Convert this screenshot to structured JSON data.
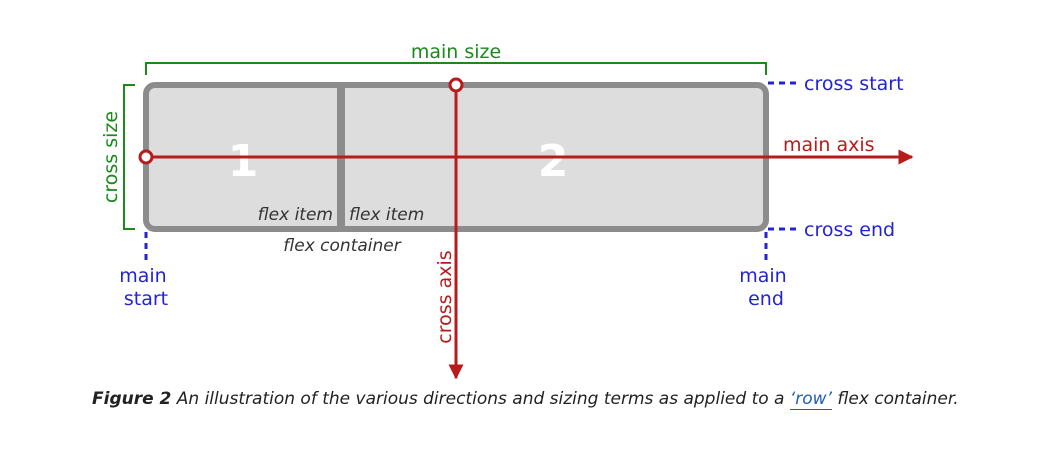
{
  "diagram": {
    "items": [
      {
        "number": "1",
        "label": "flex item"
      },
      {
        "number": "2",
        "label": "flex item"
      }
    ],
    "container_label": "flex container",
    "main_size": "main size",
    "cross_size": "cross size",
    "main_axis": "main axis",
    "cross_axis": "cross axis",
    "cross_start": "cross start",
    "cross_end": "cross end",
    "main_start": [
      "main",
      "start"
    ],
    "main_end": [
      "main",
      "end"
    ]
  },
  "caption": {
    "figure_label": "Figure 2",
    "text_before": " An illustration of the various directions and sizing terms as applied to a ",
    "link_text": "‘row’",
    "text_after": " flex container."
  },
  "colors": {
    "axis_red": "#b71c1c",
    "size_green": "#1b8a1b",
    "edge_blue": "#2323d6",
    "container_gray": "#8c8c8c",
    "item_fill": "#dddddd"
  }
}
